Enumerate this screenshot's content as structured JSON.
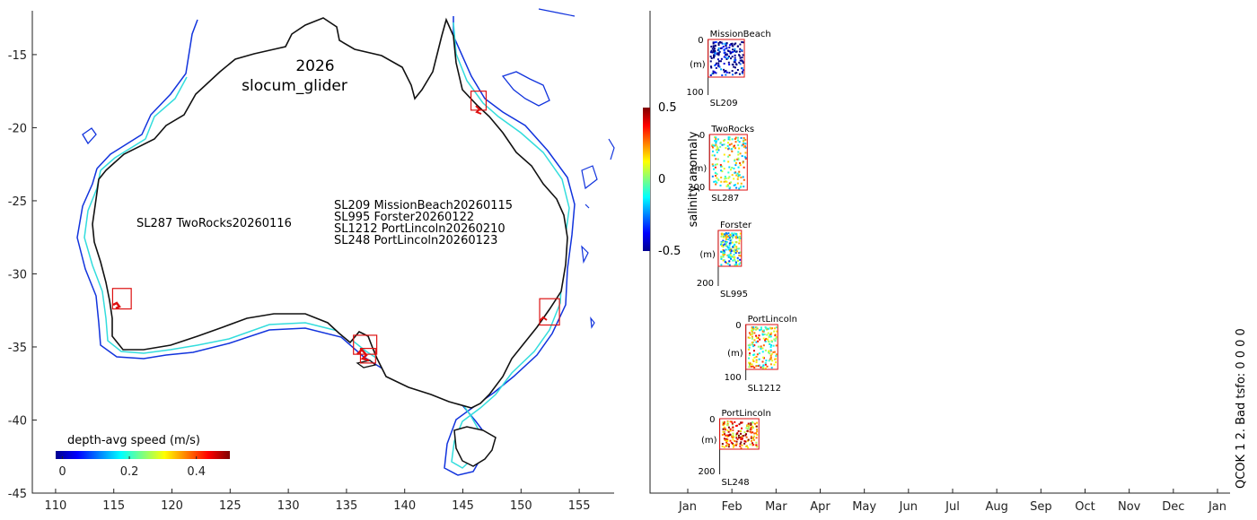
{
  "colors": {
    "coast": "#111111",
    "isobath_shallow": "#33dddd",
    "isobath_deep": "#1133dd",
    "box": "#dd1111"
  },
  "chart_data": [
    {
      "type": "map",
      "title_year": "2026",
      "title_name": "slocum_glider",
      "xlim": [
        108,
        158
      ],
      "ylim": [
        -45,
        -12
      ],
      "x_ticks": [
        110,
        115,
        120,
        125,
        130,
        135,
        140,
        145,
        150,
        155
      ],
      "y_ticks": [
        -15,
        -20,
        -25,
        -30,
        -35,
        -40,
        -45
      ],
      "x_tick_labels": [
        "110",
        "115",
        "120",
        "125",
        "130",
        "135",
        "140",
        "145",
        "150",
        "155"
      ],
      "y_tick_labels": [
        "-15",
        "-20",
        "-25",
        "-30",
        "-35",
        "-40",
        "-45"
      ],
      "west_deployments": [
        "SL287 TwoRocks20260116"
      ],
      "east_deployments": [
        "SL209 MissionBeach20260115",
        "SL995 Forster20260122",
        "SL1212 PortLincoln20260210",
        "SL248 PortLincoln20260123"
      ],
      "site_boxes": [
        {
          "name": "MissionBeach",
          "lon": [
            145.7,
            147.0
          ],
          "lat": [
            -18.8,
            -17.5
          ]
        },
        {
          "name": "TwoRocks",
          "lon": [
            114.9,
            116.5
          ],
          "lat": [
            -32.4,
            -31.0
          ]
        },
        {
          "name": "PortLincoln",
          "lon": [
            135.6,
            137.6
          ],
          "lat": [
            -35.5,
            -34.2
          ]
        },
        {
          "name": "PortLincoln",
          "lon": [
            136.2,
            137.5
          ],
          "lat": [
            -36.1,
            -35.1
          ]
        },
        {
          "name": "Forster",
          "lon": [
            151.6,
            153.3
          ],
          "lat": [
            -33.5,
            -31.7
          ]
        }
      ],
      "colorbar": {
        "label": "depth-avg speed (m/s)",
        "range": [
          -0.02,
          0.5
        ],
        "ticks": [
          0,
          0.2,
          0.4
        ],
        "tick_labels": [
          "0",
          "0.2",
          "0.4"
        ]
      }
    },
    {
      "type": "scatter",
      "ylabel": "salinity anomaly",
      "colorbar_ticks": [
        "0.5",
        "0",
        "-0.5"
      ],
      "colorbar_range": [
        -0.5,
        0.5
      ],
      "months": [
        "Jan",
        "Feb",
        "Mar",
        "Apr",
        "May",
        "Jun",
        "Jul",
        "Aug",
        "Sep",
        "Oct",
        "Nov",
        "Dec",
        "Jan"
      ],
      "qc_text": "QCOK 1  2. Bad tsfo: 0  0  0  0",
      "panels": [
        {
          "site": "MissionBeach",
          "glider": "SL209",
          "start_day": 15,
          "end_day": 40,
          "depth_max": 100,
          "ticks": [
            "0",
            "100"
          ],
          "unit": "(m)",
          "anomaly_mean": -0.5
        },
        {
          "site": "TwoRocks",
          "glider": "SL287",
          "start_day": 16,
          "end_day": 42,
          "depth_max": 200,
          "ticks": [
            "0",
            "200"
          ],
          "unit": "(m)",
          "anomaly_mean": 0.05
        },
        {
          "site": "Forster",
          "glider": "SL995",
          "start_day": 22,
          "end_day": 38,
          "depth_max": 200,
          "ticks": [
            "200"
          ],
          "unit": "(m)",
          "anomaly_mean": -0.05
        },
        {
          "site": "PortLincoln",
          "glider": "SL1212",
          "start_day": 41,
          "end_day": 63,
          "depth_max": 100,
          "ticks": [
            "0",
            "100"
          ],
          "unit": "(m)",
          "anomaly_mean": 0.1
        },
        {
          "site": "PortLincoln",
          "glider": "SL248",
          "start_day": 23,
          "end_day": 50,
          "depth_max": 200,
          "ticks": [
            "0",
            "200"
          ],
          "unit": "(m)",
          "anomaly_mean": 0.3
        }
      ]
    }
  ]
}
